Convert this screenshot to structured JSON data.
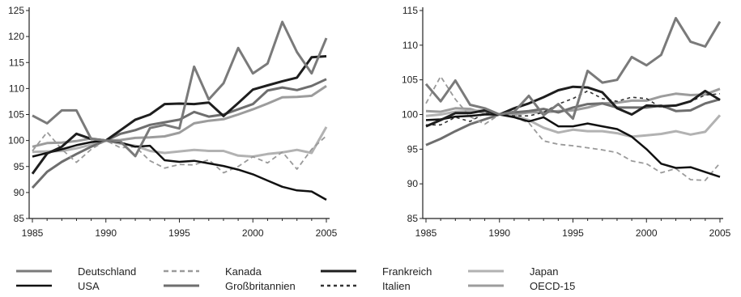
{
  "chart_data": [
    {
      "type": "line",
      "x": [
        1985,
        1986,
        1987,
        1988,
        1989,
        1990,
        1991,
        1992,
        1993,
        1994,
        1995,
        1996,
        1997,
        1998,
        1999,
        2000,
        2001,
        2002,
        2003,
        2004,
        2005
      ],
      "ylim": [
        85,
        125
      ],
      "yticks": [
        "85",
        "90",
        "95",
        "100",
        "105",
        "110",
        "115",
        "120",
        "125"
      ],
      "xticks": [
        "1985",
        "1990",
        "1995",
        "2000",
        "2005"
      ],
      "series": [
        {
          "name": "Deutschland",
          "values": [
            104.8,
            103.3,
            105.8,
            105.8,
            100.3,
            100.0,
            99.8,
            97.0,
            102.4,
            103.0,
            102.3,
            114.2,
            107.9,
            111.0,
            117.8,
            112.9,
            114.8,
            122.8,
            117.0,
            112.9,
            119.7
          ]
        },
        {
          "name": "Kanada",
          "values": [
            98.0,
            101.6,
            98.3,
            95.8,
            98.3,
            100.0,
            98.6,
            98.8,
            96.1,
            94.7,
            95.4,
            95.3,
            96.3,
            93.8,
            95.0,
            96.9,
            95.7,
            97.8,
            94.5,
            98.3,
            100.9
          ]
        },
        {
          "name": "Frankreich",
          "values": [
            93.6,
            97.5,
            98.8,
            101.3,
            100.3,
            100.0,
            102.0,
            104.0,
            105.0,
            107.0,
            107.1,
            107.0,
            107.3,
            104.7,
            107.2,
            109.8,
            110.6,
            111.4,
            112.1,
            116.0,
            116.2
          ]
        },
        {
          "name": "Japan",
          "values": [
            97.8,
            97.9,
            98.0,
            98.5,
            99.2,
            100.0,
            99.4,
            99.0,
            98.0,
            97.6,
            97.9,
            98.2,
            98.0,
            98.0,
            97.1,
            96.9,
            97.4,
            97.7,
            98.2,
            97.6,
            102.6
          ]
        },
        {
          "name": "USA",
          "values": [
            96.9,
            97.6,
            98.3,
            99.1,
            99.7,
            100.0,
            99.6,
            98.8,
            99.0,
            96.2,
            95.9,
            96.1,
            95.6,
            95.1,
            94.4,
            93.5,
            92.3,
            91.1,
            90.4,
            90.2,
            88.6
          ]
        },
        {
          "name": "Großbritannien",
          "values": [
            90.9,
            94.0,
            95.9,
            97.4,
            98.8,
            100.0,
            101.3,
            102.0,
            103.0,
            103.5,
            104.0,
            105.5,
            104.6,
            105.0,
            106.0,
            107.0,
            109.6,
            110.2,
            109.7,
            110.5,
            111.8
          ]
        },
        {
          "name": "Italien",
          "values": [
            null,
            null,
            null,
            null,
            null,
            null,
            null,
            null,
            null,
            null,
            null,
            null,
            null,
            null,
            null,
            null,
            null,
            null,
            null,
            null,
            null
          ]
        },
        {
          "name": "OECD-15",
          "values": [
            98.8,
            99.5,
            99.6,
            99.9,
            100.4,
            100.0,
            100.1,
            100.5,
            100.6,
            100.8,
            101.5,
            103.3,
            103.8,
            104.1,
            105.0,
            106.0,
            107.1,
            108.3,
            108.4,
            108.6,
            110.5
          ]
        }
      ]
    },
    {
      "type": "line",
      "x": [
        1985,
        1986,
        1987,
        1988,
        1989,
        1990,
        1991,
        1992,
        1993,
        1994,
        1995,
        1996,
        1997,
        1998,
        1999,
        2000,
        2001,
        2002,
        2003,
        2004,
        2005
      ],
      "ylim": [
        85,
        115
      ],
      "yticks": [
        "85",
        "90",
        "95",
        "100",
        "105",
        "110",
        "115"
      ],
      "xticks": [
        "1985",
        "1990",
        "1995",
        "2000",
        "2005"
      ],
      "series": [
        {
          "name": "Deutschland",
          "values": [
            104.4,
            101.9,
            104.9,
            101.4,
            100.9,
            100.0,
            100.4,
            102.7,
            99.9,
            101.5,
            99.4,
            106.3,
            104.6,
            105.0,
            108.3,
            107.1,
            108.6,
            113.9,
            110.5,
            109.8,
            113.4
          ]
        },
        {
          "name": "Kanada",
          "values": [
            101.6,
            105.5,
            102.2,
            99.7,
            98.6,
            100.0,
            99.6,
            98.8,
            96.2,
            95.7,
            95.5,
            95.2,
            94.9,
            94.5,
            93.3,
            92.9,
            91.6,
            92.2,
            90.6,
            90.5,
            93.0
          ]
        },
        {
          "name": "Frankreich",
          "values": [
            98.3,
            99.2,
            100.2,
            100.2,
            100.6,
            100.0,
            100.9,
            101.6,
            102.5,
            103.5,
            104.0,
            103.9,
            103.2,
            100.9,
            100.0,
            101.3,
            101.2,
            101.3,
            101.9,
            103.4,
            102.1
          ]
        },
        {
          "name": "Japan",
          "values": [
            99.8,
            100.0,
            100.4,
            100.5,
            100.6,
            100.0,
            99.8,
            99.2,
            98.1,
            97.4,
            97.8,
            97.6,
            97.6,
            97.3,
            96.8,
            97.0,
            97.2,
            97.6,
            97.1,
            97.5,
            99.9
          ]
        },
        {
          "name": "USA",
          "values": [
            99.2,
            99.3,
            99.7,
            99.8,
            100.0,
            100.0,
            99.6,
            99.0,
            99.6,
            98.3,
            98.3,
            98.7,
            98.3,
            97.9,
            96.8,
            95.0,
            92.9,
            92.3,
            92.4,
            91.7,
            91.0
          ]
        },
        {
          "name": "Großbritannien",
          "values": [
            95.6,
            96.5,
            97.6,
            98.6,
            99.3,
            100.0,
            100.3,
            100.5,
            100.8,
            100.3,
            101.0,
            101.5,
            101.6,
            101.0,
            101.0,
            101.0,
            101.3,
            100.5,
            100.6,
            101.6,
            102.2
          ]
        },
        {
          "name": "Italien",
          "values": [
            98.5,
            98.5,
            99.6,
            99.0,
            100.2,
            100.0,
            99.8,
            99.8,
            100.3,
            101.5,
            102.3,
            103.4,
            102.3,
            101.9,
            102.5,
            102.3,
            101.0,
            101.3,
            101.9,
            102.8,
            103.0
          ]
        },
        {
          "name": "OECD-15",
          "values": [
            100.5,
            100.4,
            100.9,
            100.8,
            100.2,
            100.0,
            100.0,
            100.3,
            100.3,
            100.5,
            100.6,
            101.0,
            101.6,
            101.7,
            102.0,
            102.0,
            102.6,
            103.0,
            102.8,
            102.9,
            103.7
          ]
        }
      ]
    }
  ],
  "styles": {
    "Deutschland": {
      "color": "#7a7a7a",
      "dash": "",
      "width": 3
    },
    "Kanada": {
      "color": "#9a9a9a",
      "dash": "6 4",
      "width": 1.8
    },
    "Frankreich": {
      "color": "#1e1e1e",
      "dash": "",
      "width": 3
    },
    "Japan": {
      "color": "#b2b2b2",
      "dash": "",
      "width": 3
    },
    "USA": {
      "color": "#111111",
      "dash": "",
      "width": 2.5
    },
    "Großbritannien": {
      "color": "#6e6e6e",
      "dash": "",
      "width": 3
    },
    "Italien": {
      "color": "#333333",
      "dash": "4 4",
      "width": 1.6
    },
    "OECD-15": {
      "color": "#9c9c9c",
      "dash": "",
      "width": 3
    }
  },
  "legend": [
    {
      "name": "Deutschland",
      "label": "Deutschland"
    },
    {
      "name": "USA",
      "label": "USA"
    },
    {
      "name": "Kanada",
      "label": "Kanada"
    },
    {
      "name": "Großbritannien",
      "label": "Großbritannien"
    },
    {
      "name": "Frankreich",
      "label": "Frankreich"
    },
    {
      "name": "Italien",
      "label": "Italien"
    },
    {
      "name": "Japan",
      "label": "Japan"
    },
    {
      "name": "OECD-15",
      "label": "OECD-15"
    }
  ]
}
